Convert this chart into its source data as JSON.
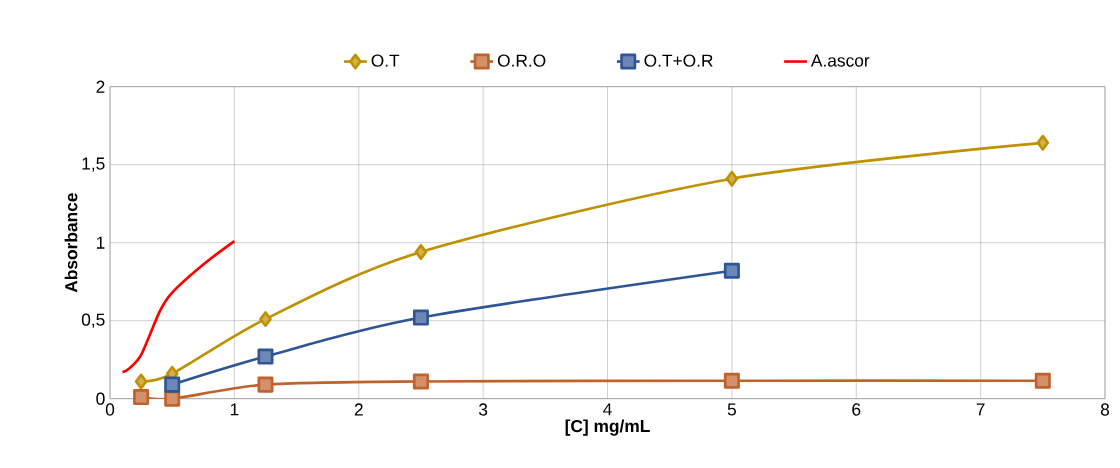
{
  "chart_data": {
    "type": "line",
    "xlabel": "[C] mg/mL",
    "ylabel": "Absorbance",
    "xlim": [
      0,
      8
    ],
    "ylim": [
      0,
      2
    ],
    "xticks": [
      0,
      1,
      2,
      3,
      4,
      5,
      6,
      7,
      8
    ],
    "yticks": [
      0,
      {
        "value": 0.5,
        "label": "0,5"
      },
      1,
      {
        "value": 1.5,
        "label": "1,5"
      },
      2
    ],
    "grid": true,
    "legend": "top",
    "line_style": "solid",
    "series": [
      {
        "name": "O.T",
        "color": "#bf9000",
        "marker": "diamond",
        "x": [
          0.25,
          0.5,
          1.25,
          2.5,
          5,
          7.5
        ],
        "values": [
          0.11,
          0.16,
          0.51,
          0.94,
          1.41,
          1.64
        ]
      },
      {
        "name": "O.R.O",
        "color": "#c0622b",
        "marker": "square",
        "x": [
          0.25,
          0.5,
          1.25,
          2.5,
          5,
          7.5
        ],
        "values": [
          0.01,
          0.0,
          0.09,
          0.11,
          0.115,
          0.115
        ]
      },
      {
        "name": "O.T+O.R",
        "color": "#2f5597",
        "marker": "square",
        "x": [
          0.5,
          1.25,
          2.5,
          5
        ],
        "values": [
          0.09,
          0.27,
          0.52,
          0.82
        ]
      },
      {
        "name": "A.ascor",
        "color": "#ff0000",
        "marker": "none",
        "x": [
          0.1,
          0.15,
          0.25,
          0.4,
          0.5,
          0.75,
          1.0
        ],
        "values": [
          0.17,
          0.19,
          0.28,
          0.56,
          0.68,
          0.86,
          1.01
        ]
      }
    ]
  }
}
